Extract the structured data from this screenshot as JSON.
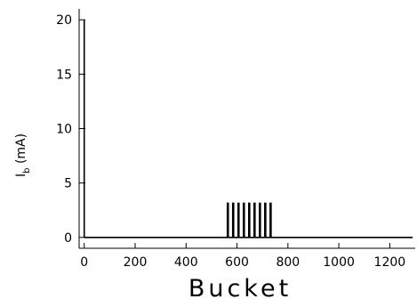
{
  "chart_data": {
    "type": "bar",
    "title": "",
    "xlabel": "Bucket",
    "ylabel": "I_b (mA)",
    "ylabel_main": "I",
    "ylabel_sub": "b",
    "ylabel_unit": " (mA)",
    "xlim": [
      -20,
      1300
    ],
    "ylim": [
      -1,
      21
    ],
    "x_ticks": [
      0,
      200,
      400,
      600,
      800,
      1000,
      1200
    ],
    "x_tick_labels": [
      "0",
      "200",
      "400",
      "600",
      "800",
      "1000",
      "1200"
    ],
    "y_ticks": [
      0,
      5,
      10,
      15,
      20
    ],
    "y_tick_labels": [
      "0",
      "5",
      "10",
      "15",
      "20"
    ],
    "baseline_range": [
      0,
      1290
    ],
    "series": [
      {
        "x": [
          0,
          564,
          585,
          606,
          627,
          648,
          669,
          690,
          711,
          732
        ],
        "values": [
          20,
          3.2,
          3.2,
          3.2,
          3.2,
          3.2,
          3.2,
          3.2,
          3.2,
          3.2
        ]
      }
    ],
    "grid": false,
    "legend": "none"
  }
}
